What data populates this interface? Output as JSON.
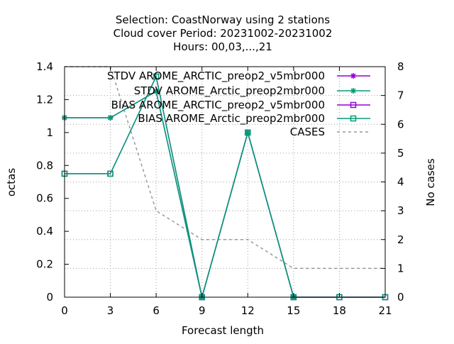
{
  "chart_data": {
    "type": "line",
    "title_lines": [
      "Selection: CoastNorway using     2 stations",
      "Cloud cover   Period: 20231002-20231002",
      "Hours:  00,03,...,21"
    ],
    "xlabel": "Forecast length",
    "ylabel": "octas",
    "y2label": "No cases",
    "x": [
      0,
      3,
      6,
      9,
      12,
      15,
      18,
      21
    ],
    "xlim": [
      0,
      21
    ],
    "ylim": [
      0,
      1.4
    ],
    "y2lim": [
      0,
      8
    ],
    "x_ticks": [
      "0",
      "3",
      "6",
      "9",
      "12",
      "15",
      "18",
      "21"
    ],
    "y_ticks": [
      "0",
      "0.2",
      "0.4",
      "0.6",
      "0.8",
      "1",
      "1.2",
      "1.4"
    ],
    "y2_ticks": [
      "0",
      "1",
      "2",
      "3",
      "4",
      "5",
      "6",
      "7",
      "8"
    ],
    "grid": true,
    "legend_position": "top-right",
    "series": [
      {
        "name": "STDV AROME_ARCTIC_preop2_v5mbr000",
        "legend_label": "STDV AROME_ARCTIC_preop2_v5mbr000",
        "color": "#9400d3",
        "marker": "star",
        "axis": "y",
        "values": [
          1.09,
          1.09,
          1.25,
          0.0,
          1.0,
          0.0,
          null,
          null
        ]
      },
      {
        "name": "STDV AROME_Arctic_preop2mbr000",
        "legend_label": "STDV AROME_Arctic_preop2mbr000",
        "color": "#009e73",
        "marker": "star",
        "axis": "y",
        "values": [
          1.09,
          1.09,
          1.25,
          0.0,
          1.0,
          0.0,
          null,
          null
        ]
      },
      {
        "name": "BIAS AROME_ARCTIC_preop2_v5mbr000",
        "legend_label": "BIAS AROME_ARCTIC_preop2_v5mbr000",
        "color": "#9400d3",
        "marker": "square",
        "axis": "y",
        "values": [
          0.75,
          0.75,
          1.34,
          0.0,
          1.0,
          0.0,
          0.0,
          0.0
        ]
      },
      {
        "name": "BIAS AROME_Arctic_preop2mbr000",
        "legend_label": "BIAS AROME_Arctic_preop2mbr000",
        "color": "#009e73",
        "marker": "square",
        "axis": "y",
        "values": [
          0.75,
          0.75,
          1.34,
          0.0,
          1.0,
          0.0,
          0.0,
          0.0
        ]
      },
      {
        "name": "CASES",
        "legend_label": "CASES",
        "color": "#999999",
        "marker": "none",
        "dashed": true,
        "axis": "y2",
        "values": [
          8,
          8,
          3,
          2,
          2,
          1,
          1,
          1
        ]
      }
    ]
  }
}
